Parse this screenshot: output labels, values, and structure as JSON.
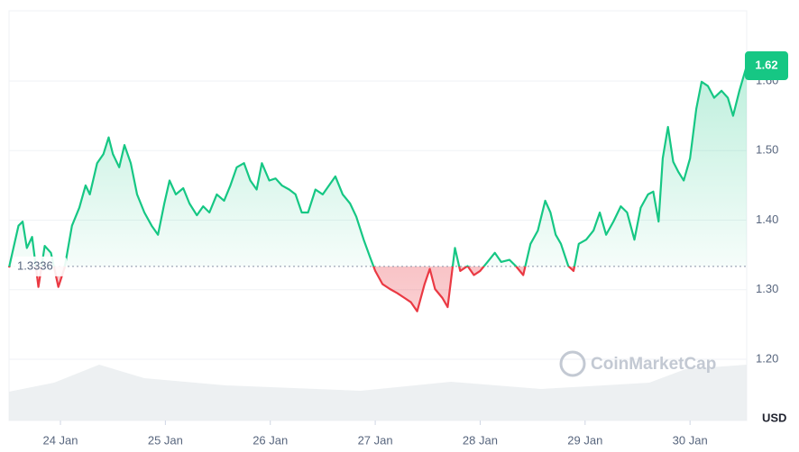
{
  "chart_data": {
    "type": "baseline",
    "baseline": 1.3336,
    "current_price": 1.62,
    "unit": "USD",
    "watermark": "CoinMarketCap",
    "up_color": "#16c784",
    "down_color": "#ea3943",
    "grid": true,
    "xlim": [
      -0.49,
      6.54
    ],
    "xticks": [
      {
        "value": 0,
        "label": "24 Jan"
      },
      {
        "value": 1,
        "label": "25 Jan"
      },
      {
        "value": 2,
        "label": "26 Jan"
      },
      {
        "value": 3,
        "label": "27 Jan"
      },
      {
        "value": 4,
        "label": "28 Jan"
      },
      {
        "value": 5,
        "label": "29 Jan"
      },
      {
        "value": 6,
        "label": "30 Jan"
      }
    ],
    "ylim": [
      1.112,
      1.701
    ],
    "yticks": [
      {
        "value": 1.2,
        "label": "1.20"
      },
      {
        "value": 1.3,
        "label": "1.30"
      },
      {
        "value": 1.4,
        "label": "1.40"
      },
      {
        "value": 1.5,
        "label": "1.50"
      },
      {
        "value": 1.6,
        "label": "1.60"
      }
    ],
    "x": [
      -0.49,
      -0.4,
      -0.36,
      -0.32,
      -0.27,
      -0.21,
      -0.15,
      -0.09,
      -0.02,
      0.04,
      0.11,
      0.18,
      0.24,
      0.28,
      0.35,
      0.41,
      0.46,
      0.5,
      0.56,
      0.61,
      0.67,
      0.73,
      0.8,
      0.87,
      0.93,
      0.99,
      1.04,
      1.1,
      1.17,
      1.23,
      1.3,
      1.36,
      1.42,
      1.49,
      1.56,
      1.62,
      1.68,
      1.75,
      1.81,
      1.87,
      1.92,
      1.99,
      2.05,
      2.11,
      2.18,
      2.24,
      2.3,
      2.36,
      2.43,
      2.5,
      2.56,
      2.62,
      2.69,
      2.76,
      2.82,
      2.89,
      2.95,
      3.0,
      3.07,
      3.14,
      3.21,
      3.28,
      3.34,
      3.4,
      3.47,
      3.52,
      3.57,
      3.64,
      3.69,
      3.76,
      3.81,
      3.88,
      3.94,
      4.0,
      4.07,
      4.14,
      4.2,
      4.28,
      4.34,
      4.41,
      4.48,
      4.55,
      4.62,
      4.67,
      4.72,
      4.77,
      4.84,
      4.89,
      4.94,
      5.01,
      5.08,
      5.14,
      5.2,
      5.27,
      5.34,
      5.4,
      5.47,
      5.53,
      5.6,
      5.65,
      5.7,
      5.74,
      5.79,
      5.84,
      5.89,
      5.94,
      6.0,
      6.06,
      6.11,
      6.17,
      6.23,
      6.3,
      6.36,
      6.41,
      6.47,
      6.54
    ],
    "values": [
      1.332,
      1.392,
      1.398,
      1.36,
      1.376,
      1.304,
      1.363,
      1.353,
      1.304,
      1.332,
      1.392,
      1.418,
      1.45,
      1.437,
      1.482,
      1.495,
      1.519,
      1.495,
      1.476,
      1.508,
      1.482,
      1.437,
      1.411,
      1.392,
      1.379,
      1.424,
      1.457,
      1.437,
      1.446,
      1.424,
      1.407,
      1.42,
      1.411,
      1.437,
      1.428,
      1.45,
      1.476,
      1.482,
      1.457,
      1.444,
      1.482,
      1.457,
      1.46,
      1.45,
      1.444,
      1.437,
      1.411,
      1.411,
      1.444,
      1.437,
      1.45,
      1.463,
      1.437,
      1.424,
      1.405,
      1.372,
      1.347,
      1.327,
      1.308,
      1.301,
      1.295,
      1.288,
      1.282,
      1.269,
      1.308,
      1.33,
      1.301,
      1.288,
      1.275,
      1.36,
      1.327,
      1.334,
      1.321,
      1.327,
      1.34,
      1.353,
      1.34,
      1.343,
      1.334,
      1.321,
      1.366,
      1.385,
      1.428,
      1.411,
      1.379,
      1.366,
      1.334,
      1.327,
      1.366,
      1.372,
      1.385,
      1.411,
      1.379,
      1.398,
      1.42,
      1.411,
      1.372,
      1.418,
      1.437,
      1.441,
      1.398,
      1.489,
      1.534,
      1.484,
      1.469,
      1.457,
      1.489,
      1.56,
      1.599,
      1.593,
      1.576,
      1.586,
      1.576,
      1.55,
      1.586,
      1.622
    ]
  }
}
